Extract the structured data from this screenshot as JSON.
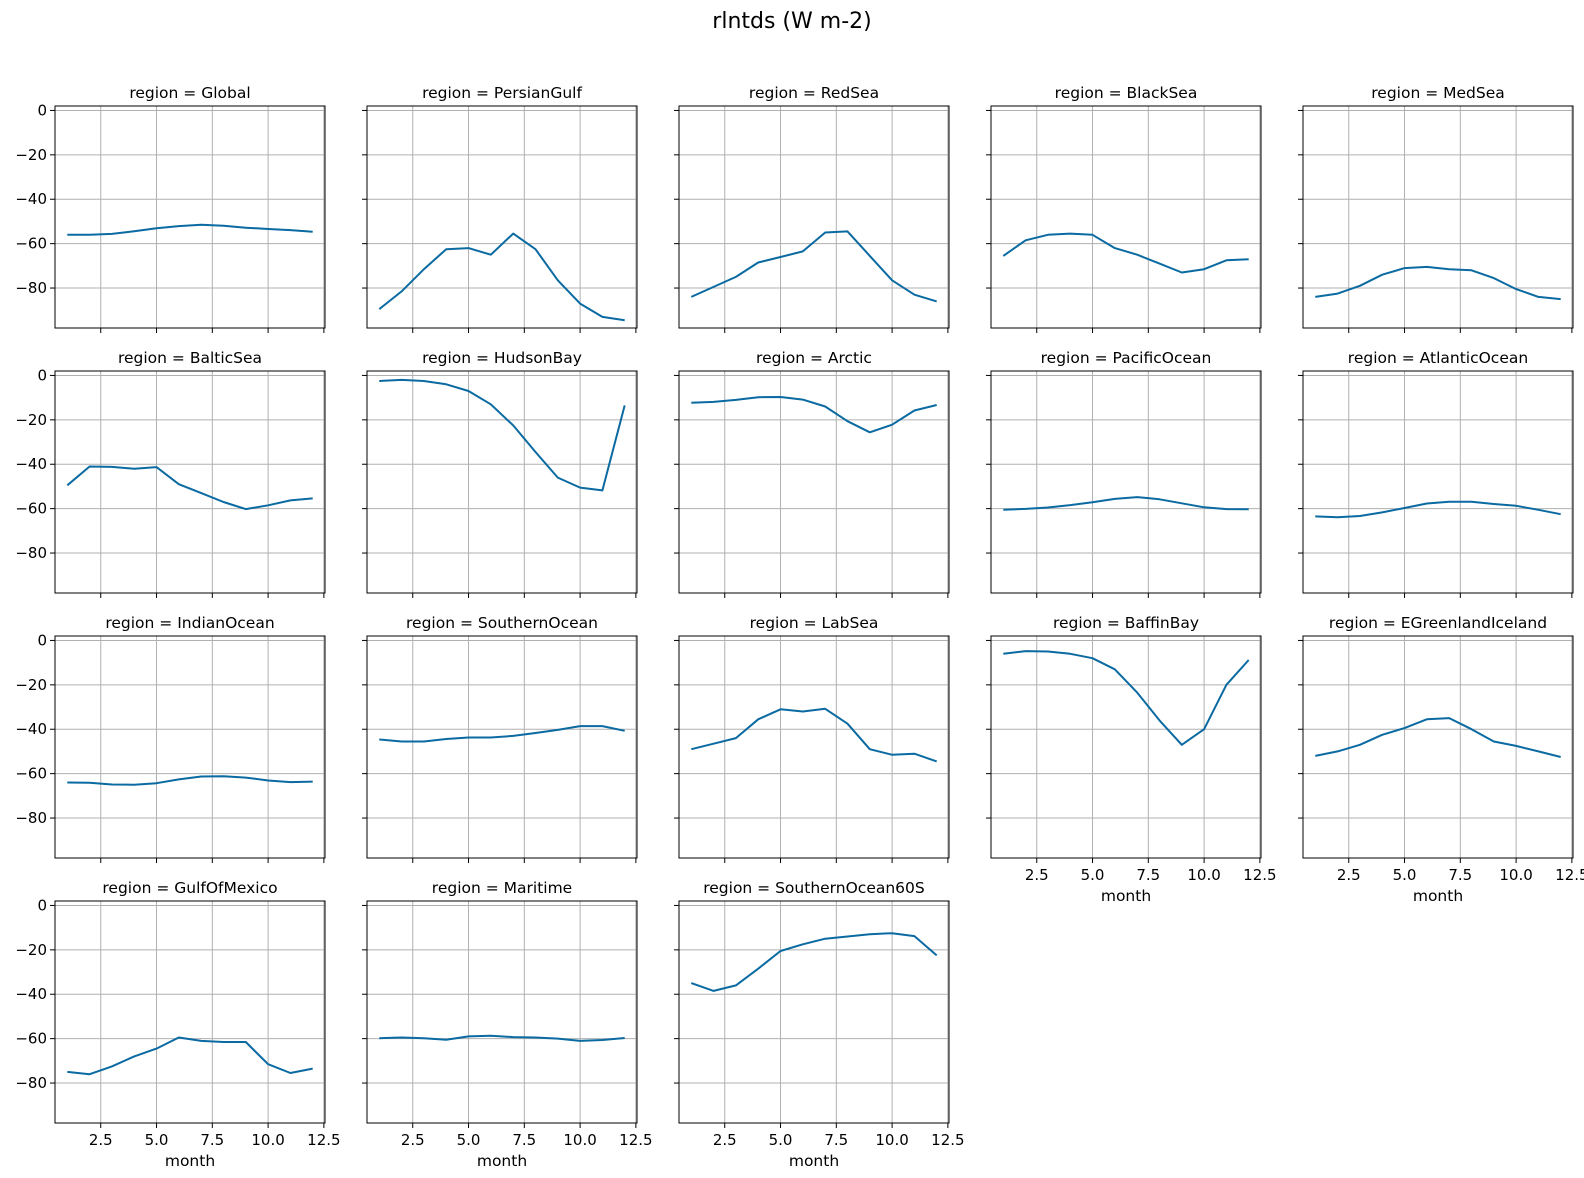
{
  "figure_title": "rlntds (W m-2)",
  "colors": {
    "series": "#0a6aa1",
    "grid": "#b0b0b0"
  },
  "chart_data": {
    "type": "line",
    "layout": "facet-grid",
    "columns": 5,
    "x": [
      1,
      2,
      3,
      4,
      5,
      6,
      7,
      8,
      9,
      10,
      11,
      12
    ],
    "xlabel": "month",
    "xlim": [
      0.45,
      12.55
    ],
    "ylim": [
      2,
      -98
    ],
    "y_inverted": true,
    "xticks": [
      2.5,
      5.0,
      7.5,
      10.0,
      12.5
    ],
    "xtick_labels": [
      "2.5",
      "5.0",
      "7.5",
      "10.0",
      "12.5"
    ],
    "yticks": [
      0,
      -20,
      -40,
      -60,
      -80
    ],
    "ytick_labels": [
      "0",
      "−20",
      "−40",
      "−60",
      "−80"
    ],
    "grid": true,
    "panels": [
      {
        "title": "region = Global",
        "values": [
          -56.0,
          -56.0,
          -55.6,
          -54.4,
          -53.1,
          -52.1,
          -51.5,
          -51.9,
          -52.8,
          -53.4,
          -53.9,
          -54.6
        ]
      },
      {
        "title": "region = PersianGulf",
        "values": [
          -89.5,
          -81.5,
          -71.5,
          -62.5,
          -62.0,
          -65.0,
          -55.5,
          -62.5,
          -76.5,
          -87.0,
          -93.0,
          -94.5
        ]
      },
      {
        "title": "region = RedSea",
        "values": [
          -84.0,
          -79.5,
          -75.0,
          -68.5,
          -66.0,
          -63.5,
          -55.0,
          -54.5,
          -65.5,
          -76.5,
          -83.0,
          -86.0
        ]
      },
      {
        "title": "region = BlackSea",
        "values": [
          -65.5,
          -58.5,
          -56.0,
          -55.5,
          -56.0,
          -62.0,
          -65.0,
          -69.0,
          -73.0,
          -71.5,
          -67.5,
          -67.0
        ]
      },
      {
        "title": "region = MedSea",
        "values": [
          -84.0,
          -82.5,
          -79.0,
          -74.0,
          -71.0,
          -70.5,
          -71.5,
          -72.0,
          -75.5,
          -80.5,
          -84.0,
          -85.0
        ]
      },
      {
        "title": "region = BalticSea",
        "values": [
          -49.5,
          -41.0,
          -41.2,
          -42.0,
          -41.3,
          -49.0,
          -53.0,
          -57.0,
          -60.2,
          -58.5,
          -56.3,
          -55.4
        ]
      },
      {
        "title": "region = HudsonBay",
        "values": [
          -2.5,
          -2.0,
          -2.5,
          -4.0,
          -7.0,
          -13.0,
          -22.5,
          -34.5,
          -46.0,
          -50.5,
          -51.8,
          -13.5
        ]
      },
      {
        "title": "region = Arctic",
        "values": [
          -12.3,
          -11.9,
          -11.0,
          -9.8,
          -9.7,
          -10.9,
          -14.0,
          -20.6,
          -25.6,
          -22.2,
          -15.8,
          -13.3
        ]
      },
      {
        "title": "region = PacificOcean",
        "values": [
          -60.5,
          -60.1,
          -59.5,
          -58.4,
          -57.1,
          -55.6,
          -54.8,
          -55.8,
          -57.6,
          -59.4,
          -60.2,
          -60.3
        ]
      },
      {
        "title": "region = AtlanticOcean",
        "values": [
          -63.5,
          -63.9,
          -63.3,
          -61.7,
          -59.7,
          -57.7,
          -56.9,
          -56.9,
          -57.9,
          -58.7,
          -60.5,
          -62.5
        ]
      },
      {
        "title": "region = IndianOcean",
        "values": [
          -64.0,
          -64.1,
          -64.9,
          -65.0,
          -64.3,
          -62.6,
          -61.3,
          -61.2,
          -61.8,
          -63.1,
          -63.8,
          -63.6
        ]
      },
      {
        "title": "region = SouthernOcean",
        "values": [
          -44.6,
          -45.5,
          -45.5,
          -44.4,
          -43.7,
          -43.7,
          -43.0,
          -41.7,
          -40.3,
          -38.6,
          -38.6,
          -40.7
        ]
      },
      {
        "title": "region = LabSea",
        "values": [
          -49.0,
          -46.5,
          -44.0,
          -35.5,
          -31.0,
          -32.0,
          -30.8,
          -37.5,
          -49.0,
          -51.5,
          -51.0,
          -54.5
        ]
      },
      {
        "title": "region = BaffinBay",
        "values": [
          -6.0,
          -4.8,
          -5.0,
          -6.0,
          -8.0,
          -13.0,
          -23.5,
          -36.0,
          -47.0,
          -40.0,
          -20.0,
          -8.8
        ]
      },
      {
        "title": "region = EGreenlandIceland",
        "values": [
          -52.0,
          -50.0,
          -47.0,
          -42.5,
          -39.5,
          -35.5,
          -35.0,
          -40.0,
          -45.5,
          -47.5,
          -50.0,
          -52.5
        ]
      },
      {
        "title": "region = GulfOfMexico",
        "values": [
          -75.0,
          -76.0,
          -72.5,
          -68.0,
          -64.5,
          -59.5,
          -61.0,
          -61.5,
          -61.5,
          -71.5,
          -75.5,
          -73.5
        ]
      },
      {
        "title": "region = Maritime",
        "values": [
          -59.8,
          -59.5,
          -59.8,
          -60.5,
          -59.0,
          -58.7,
          -59.3,
          -59.5,
          -60.0,
          -61.0,
          -60.6,
          -59.7
        ]
      },
      {
        "title": "region = SouthernOcean60S",
        "values": [
          -35.0,
          -38.5,
          -36.0,
          -28.5,
          -20.5,
          -17.5,
          -15.0,
          -14.0,
          -13.0,
          -12.5,
          -13.8,
          -22.5
        ]
      }
    ]
  }
}
